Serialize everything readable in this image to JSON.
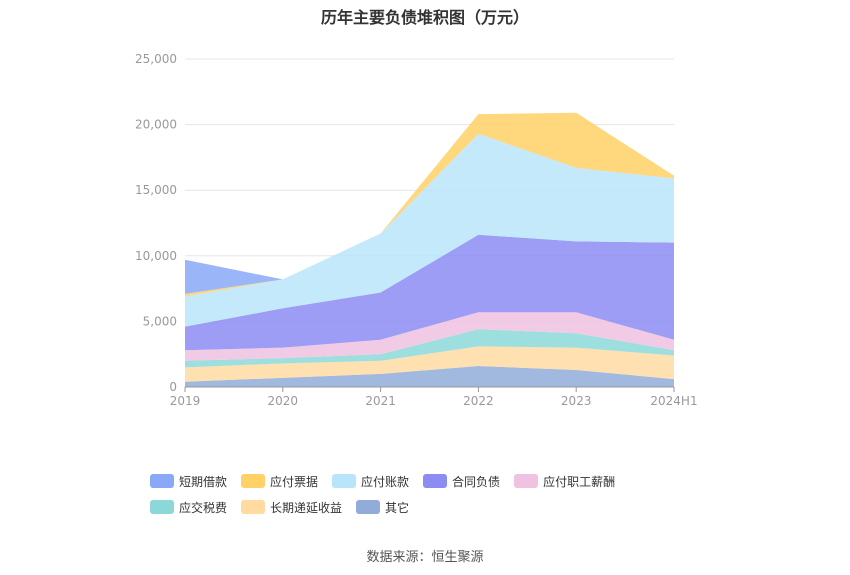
{
  "chart_data": {
    "type": "area",
    "stacked": true,
    "title": "历年主要负债堆积图（万元）",
    "categories": [
      "2019",
      "2020",
      "2021",
      "2022",
      "2023",
      "2024H1"
    ],
    "ylim": [
      0,
      25000
    ],
    "yticks": [
      "0",
      "5,000",
      "10,000",
      "15,000",
      "20,000",
      "25,000"
    ],
    "ytick_values": [
      0,
      5000,
      10000,
      15000,
      20000,
      25000
    ],
    "grid": true,
    "legend_position": "bottom",
    "series": [
      {
        "name": "其它",
        "color": "#91acd9",
        "values": [
          400,
          700,
          1000,
          1600,
          1300,
          600
        ]
      },
      {
        "name": "长期递延收益",
        "color": "#ffdba2",
        "values": [
          1100,
          1100,
          1000,
          1500,
          1700,
          1800
        ]
      },
      {
        "name": "应交税费",
        "color": "#8cd8d8",
        "values": [
          500,
          400,
          500,
          1300,
          1100,
          400
        ]
      },
      {
        "name": "应付职工薪酬",
        "color": "#eec2e0",
        "values": [
          800,
          800,
          1100,
          1300,
          1600,
          800
        ]
      },
      {
        "name": "合同负债",
        "color": "#8c8cf3",
        "values": [
          1800,
          3000,
          3600,
          5900,
          5400,
          7400
        ]
      },
      {
        "name": "应付账款",
        "color": "#b9e5fa",
        "values": [
          2300,
          2200,
          4500,
          7700,
          5600,
          4900
        ]
      },
      {
        "name": "应付票据",
        "color": "#ffd166",
        "values": [
          200,
          0,
          0,
          1500,
          4200,
          200
        ]
      },
      {
        "name": "短期借款",
        "color": "#8aa8f8",
        "values": [
          2600,
          0,
          0,
          0,
          0,
          0
        ]
      }
    ]
  },
  "legend_order": [
    "短期借款",
    "应付票据",
    "应付账款",
    "合同负债",
    "应付职工薪酬",
    "应交税费",
    "长期递延收益",
    "其它"
  ],
  "footer": {
    "source": "数据来源：恒生聚源"
  }
}
